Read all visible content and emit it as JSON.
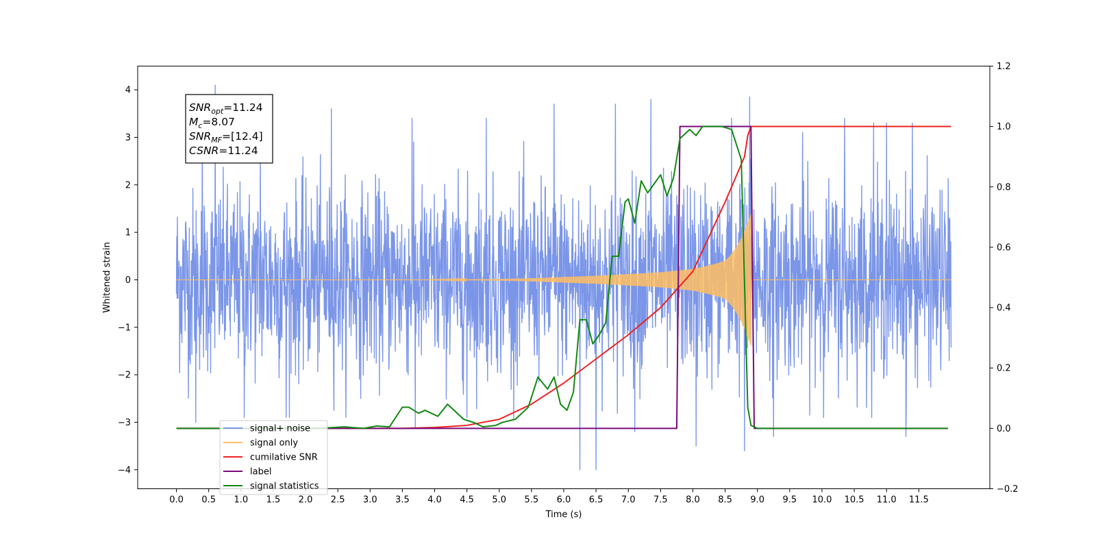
{
  "chart_data": {
    "type": "line",
    "xlabel": "Time (s)",
    "ylabel": "Whitened strain",
    "ylabel_right": "",
    "xlim": [
      -0.6,
      12.6
    ],
    "ylim": [
      -4.4,
      4.5
    ],
    "ylim_right": [
      -0.2,
      1.2
    ],
    "x_ticks": [
      "0.0",
      "0.5",
      "1.0",
      "1.5",
      "2.0",
      "2.5",
      "3.0",
      "3.5",
      "4.0",
      "4.5",
      "5.0",
      "5.5",
      "6.0",
      "6.5",
      "7.0",
      "7.5",
      "8.0",
      "8.5",
      "9.0",
      "9.5",
      "10.0",
      "10.5",
      "11.0",
      "11.5"
    ],
    "y_ticks_left": [
      "4",
      "3",
      "2",
      "1",
      "0",
      "−1",
      "−2",
      "−3",
      "−4"
    ],
    "y_ticks_right": [
      "1.2",
      "1.0",
      "0.8",
      "0.6",
      "0.4",
      "0.2",
      "0.0",
      "−0.2"
    ],
    "grid": false,
    "legend_position": "lower-left",
    "annotation": [
      {
        "name": "SNR",
        "sub": "opt",
        "value": "=11.24"
      },
      {
        "name": "M",
        "sub": "c",
        "value": "=8.07"
      },
      {
        "name": "SNR",
        "sub": "MF",
        "value": "=[12.4]"
      },
      {
        "name": "CSNR",
        "sub": "",
        "value": "=11.24"
      }
    ],
    "series": [
      {
        "name": "signal+ noise",
        "axis": "left",
        "color": "#7b96e8",
        "description_range": [
          -2.8,
          2.7
        ],
        "peaks": [
          [
            0.6,
            4.1
          ],
          [
            0.4,
            3.1
          ],
          [
            1.3,
            3.2
          ],
          [
            2.4,
            3.6
          ],
          [
            3.65,
            3.4
          ],
          [
            4.8,
            3.4
          ],
          [
            5.85,
            3.7
          ],
          [
            6.8,
            3.7
          ],
          [
            7.35,
            3.8
          ],
          [
            8.6,
            3.4
          ],
          [
            8.88,
            3.85
          ],
          [
            9.7,
            3.1
          ],
          [
            10.35,
            3.4
          ],
          [
            10.8,
            3.3
          ],
          [
            11.0,
            3.3
          ],
          [
            11.4,
            3.3
          ],
          [
            0.3,
            -3.0
          ],
          [
            1.05,
            -2.9
          ],
          [
            1.7,
            -2.9
          ],
          [
            3.7,
            -3.1
          ],
          [
            4.5,
            -2.9
          ],
          [
            6.25,
            -4.0
          ],
          [
            6.5,
            -4.0
          ],
          [
            7.1,
            -3.2
          ],
          [
            8.05,
            -3.5
          ],
          [
            8.8,
            -3.6
          ],
          [
            9.25,
            -3.3
          ],
          [
            11.3,
            -3.3
          ]
        ],
        "x_range": [
          0.0,
          12.0
        ]
      },
      {
        "name": "signal only",
        "axis": "left",
        "color": "#ffbe63",
        "x_range": [
          0.0,
          12.0
        ],
        "chirp_start": 3.8,
        "chirp_end": 8.9,
        "envelope": [
          [
            4.5,
            0.01
          ],
          [
            6.0,
            0.06
          ],
          [
            7.0,
            0.12
          ],
          [
            7.5,
            0.16
          ],
          [
            8.0,
            0.23
          ],
          [
            8.5,
            0.4
          ],
          [
            8.9,
            1.4
          ]
        ]
      },
      {
        "name": "cumilative SNR",
        "axis": "right",
        "color": "#ee2222",
        "x": [
          0.0,
          3.5,
          4.0,
          4.5,
          5.0,
          5.5,
          6.0,
          6.5,
          7.0,
          7.5,
          8.0,
          8.5,
          8.8,
          8.85,
          8.9,
          12.0
        ],
        "y": [
          0.0,
          0.0,
          0.003,
          0.01,
          0.03,
          0.08,
          0.15,
          0.23,
          0.31,
          0.4,
          0.52,
          0.75,
          0.9,
          0.97,
          1.0,
          1.0
        ]
      },
      {
        "name": "label",
        "axis": "right",
        "color": "#7a0a7a",
        "x": [
          0.0,
          7.75,
          7.8,
          8.9,
          8.95,
          11.95
        ],
        "y": [
          0.0,
          0.0,
          1.0,
          1.0,
          0.0,
          0.0
        ]
      },
      {
        "name": "signal statistics",
        "axis": "right",
        "color": "#118811",
        "x": [
          0.0,
          2.2,
          2.6,
          2.9,
          3.1,
          3.3,
          3.5,
          3.6,
          3.75,
          3.85,
          3.95,
          4.05,
          4.2,
          4.3,
          4.45,
          4.6,
          4.75,
          4.95,
          5.05,
          5.25,
          5.45,
          5.6,
          5.75,
          5.85,
          5.95,
          6.05,
          6.15,
          6.25,
          6.35,
          6.45,
          6.55,
          6.65,
          6.75,
          6.85,
          6.95,
          7.0,
          7.1,
          7.2,
          7.3,
          7.4,
          7.5,
          7.6,
          7.7,
          7.8,
          7.9,
          7.95,
          8.05,
          8.15,
          8.3,
          8.45,
          8.6,
          8.75,
          8.85,
          8.9,
          9.0,
          11.95
        ],
        "y": [
          0.0,
          0.0,
          0.005,
          0.0,
          0.008,
          0.005,
          0.07,
          0.07,
          0.05,
          0.06,
          0.05,
          0.04,
          0.08,
          0.06,
          0.03,
          0.02,
          0.005,
          0.01,
          0.02,
          0.03,
          0.07,
          0.17,
          0.13,
          0.17,
          0.08,
          0.06,
          0.12,
          0.36,
          0.36,
          0.28,
          0.31,
          0.35,
          0.57,
          0.57,
          0.75,
          0.76,
          0.68,
          0.82,
          0.78,
          0.81,
          0.84,
          0.77,
          0.83,
          0.96,
          0.98,
          0.99,
          0.97,
          1.0,
          1.0,
          1.0,
          0.99,
          0.89,
          0.07,
          0.01,
          0.0,
          0.0
        ]
      }
    ],
    "legend": [
      {
        "label": "signal+ noise",
        "color": "#7b96e8"
      },
      {
        "label": "signal only",
        "color": "#ffbe63"
      },
      {
        "label": "cumilative SNR",
        "color": "#ee2222"
      },
      {
        "label": "label",
        "color": "#7a0a7a"
      },
      {
        "label": "signal statistics",
        "color": "#118811"
      }
    ]
  }
}
